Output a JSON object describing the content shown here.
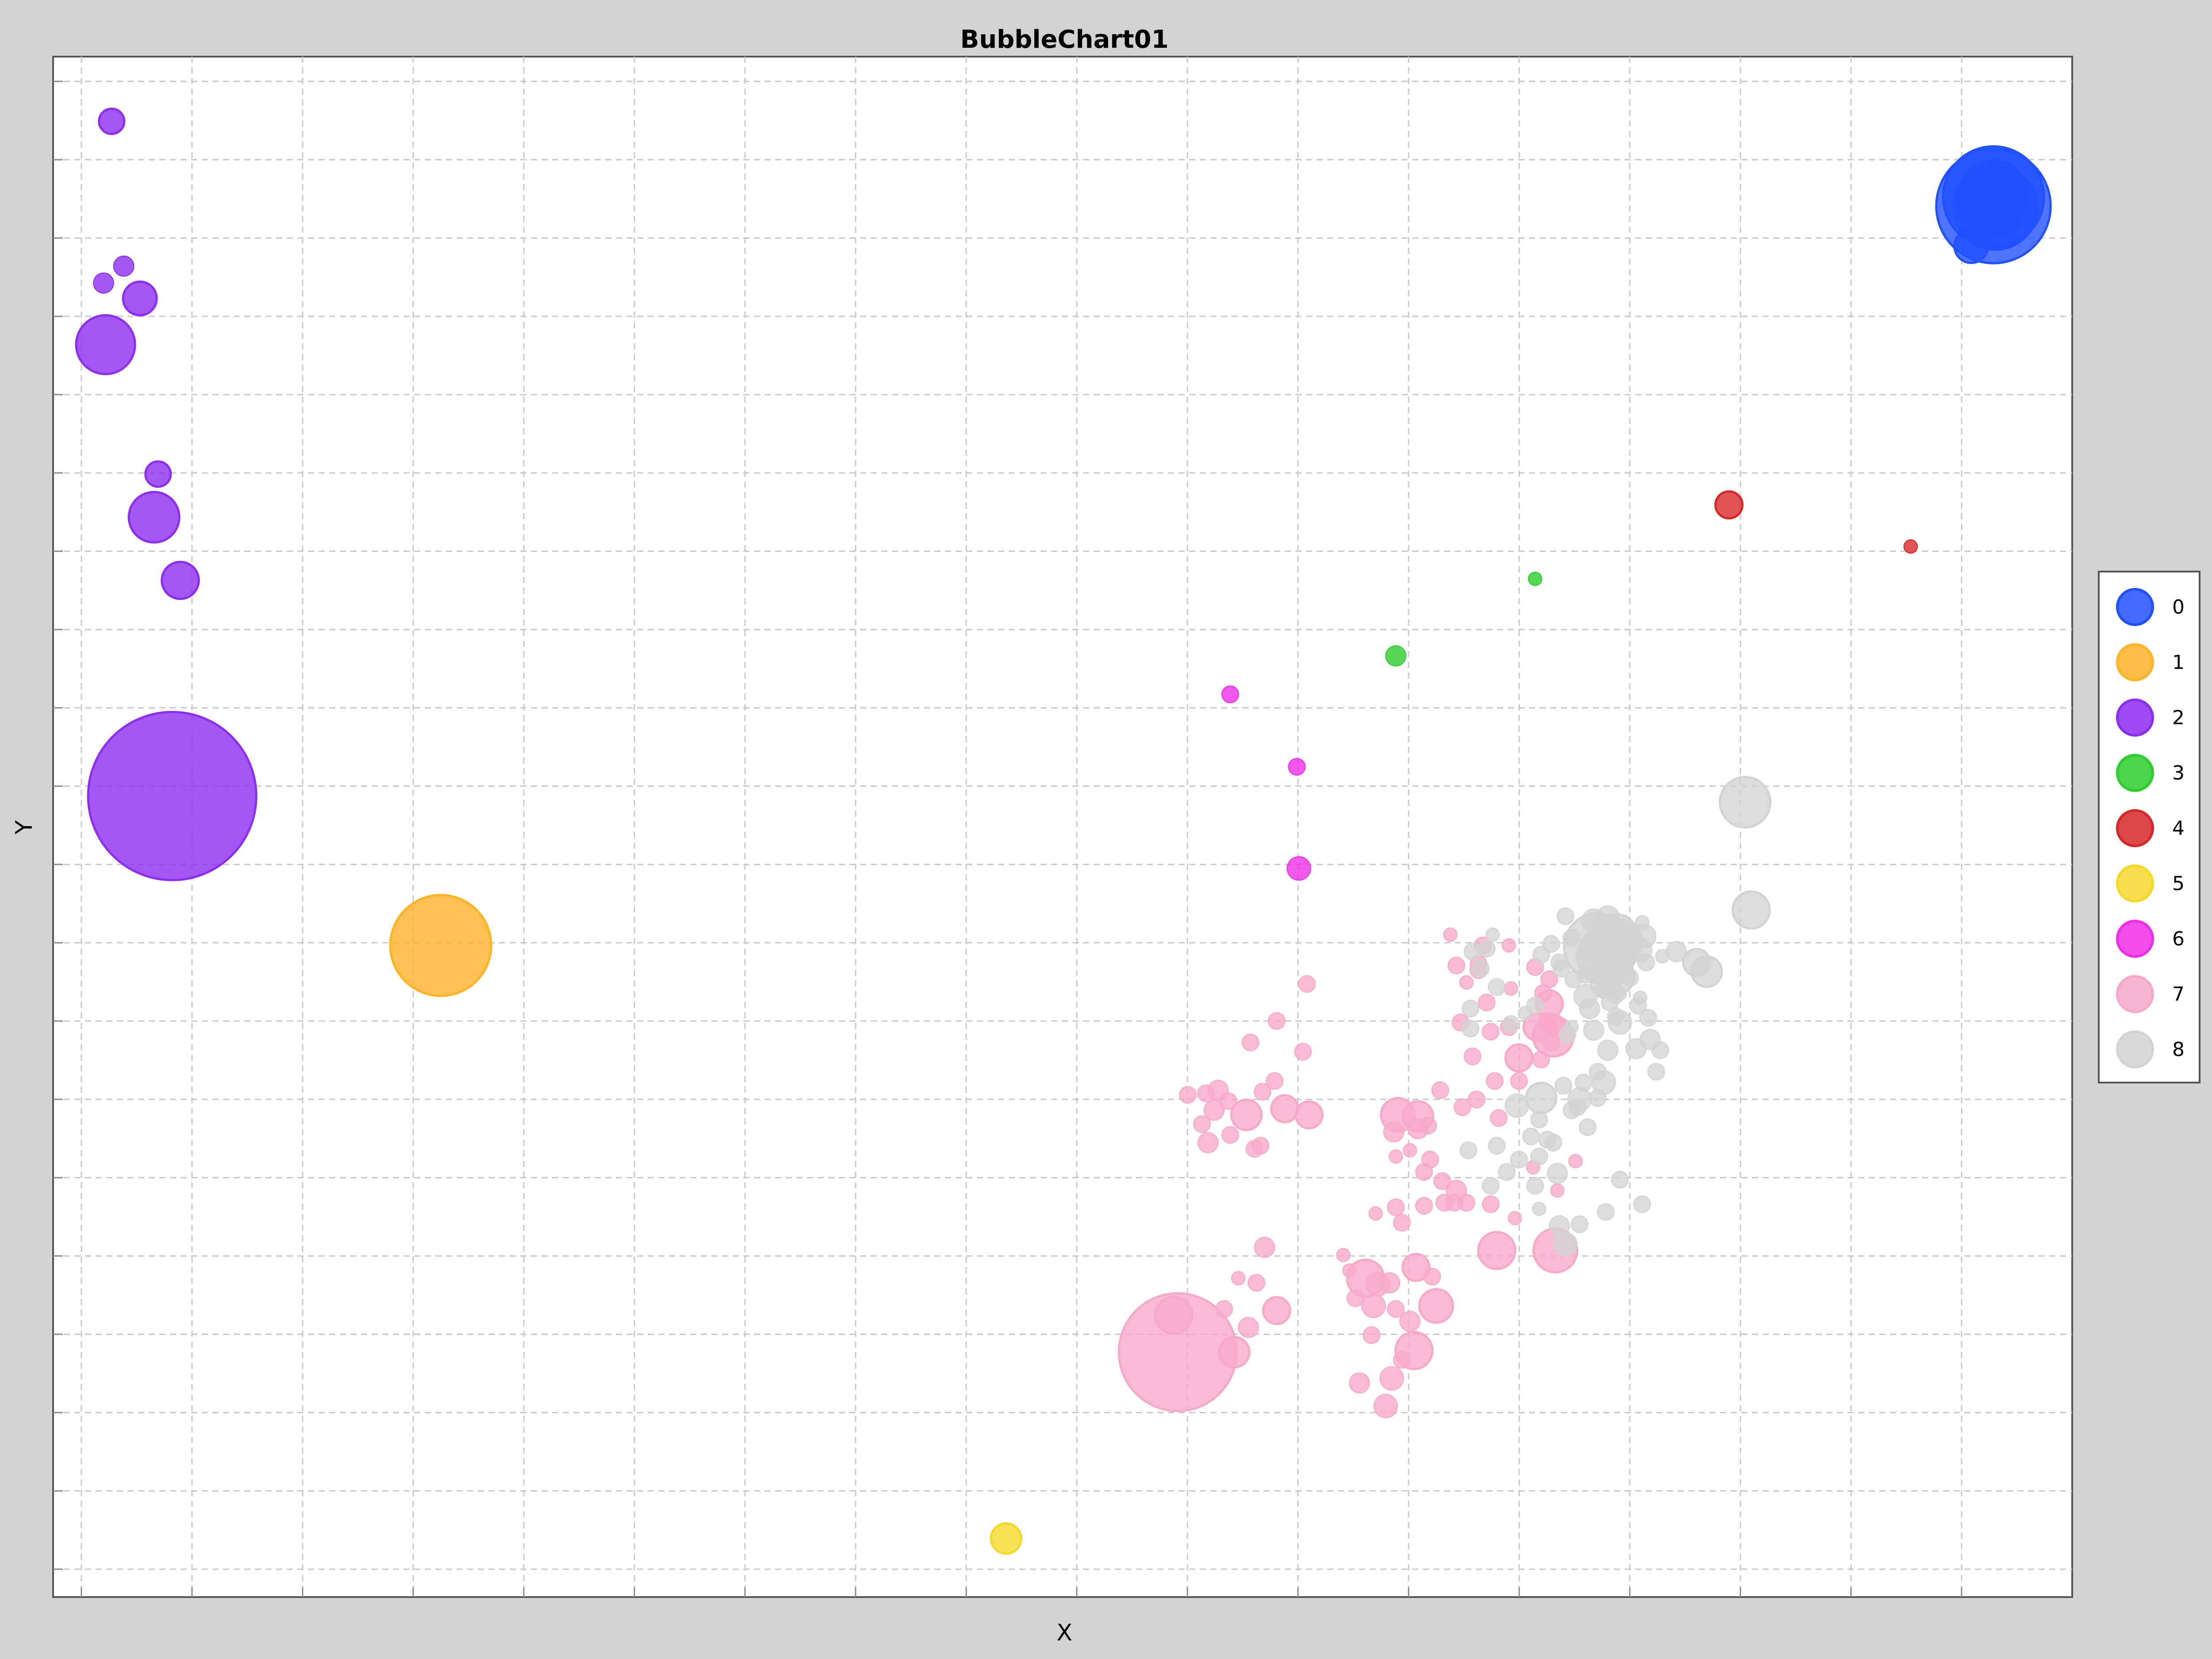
{
  "chart_data": {
    "type": "scatter",
    "title": "BubbleChart01",
    "xlabel": "X",
    "ylabel": "Y",
    "grid": true,
    "legend_position": "right",
    "tick_labels_shown": false,
    "xlim": [
      0,
      100
    ],
    "ylim": [
      0,
      100
    ],
    "series": [
      {
        "name": "0",
        "color": "#2150ff",
        "points": [
          [
            96.1,
            90.9,
            60
          ],
          [
            95.5,
            88.9,
            20
          ],
          [
            96.2,
            90.2,
            50
          ],
          [
            96.1,
            90.3,
            68
          ],
          [
            95.0,
            87.7,
            20
          ],
          [
            96.1,
            91.1,
            40
          ],
          [
            96.0,
            90.4,
            40
          ]
        ]
      },
      {
        "name": "1",
        "color": "#ffb327",
        "points": [
          [
            19.2,
            42.3,
            60
          ]
        ]
      },
      {
        "name": "2",
        "color": "#8c2df0",
        "points": [
          [
            2.9,
            95.8,
            15
          ],
          [
            3.5,
            86.4,
            12
          ],
          [
            2.5,
            85.3,
            12
          ],
          [
            4.3,
            84.3,
            20
          ],
          [
            2.6,
            81.3,
            35
          ],
          [
            5.2,
            72.9,
            15
          ],
          [
            5.0,
            70.1,
            30
          ],
          [
            6.3,
            66.0,
            22
          ],
          [
            5.9,
            52.0,
            100
          ]
        ]
      },
      {
        "name": "3",
        "color": "#2ecc2e",
        "points": [
          [
            66.5,
            61.1,
            12
          ],
          [
            73.4,
            66.1,
            8
          ]
        ]
      },
      {
        "name": "4",
        "color": "#d62828",
        "points": [
          [
            83.0,
            70.9,
            16
          ],
          [
            92.0,
            68.2,
            8
          ]
        ]
      },
      {
        "name": "5",
        "color": "#f5d92a",
        "points": [
          [
            47.2,
            3.8,
            18
          ]
        ]
      },
      {
        "name": "6",
        "color": "#ee2ee6",
        "points": [
          [
            58.3,
            58.6,
            10
          ],
          [
            61.6,
            53.9,
            10
          ],
          [
            61.7,
            47.3,
            14
          ]
        ]
      },
      {
        "name": "7",
        "color": "#f7aac8",
        "points": [
          [
            55.7,
            15.9,
            70
          ],
          [
            55.5,
            18.3,
            22
          ],
          [
            58.5,
            15.9,
            18
          ],
          [
            59.2,
            17.5,
            12
          ],
          [
            60.6,
            18.6,
            16
          ],
          [
            58.0,
            18.7,
            10
          ],
          [
            59.6,
            20.4,
            10
          ],
          [
            58.7,
            20.7,
            8
          ],
          [
            60.0,
            22.7,
            12
          ],
          [
            65.0,
            20.7,
            22
          ],
          [
            65.6,
            20.3,
            14
          ],
          [
            66.2,
            20.4,
            12
          ],
          [
            67.5,
            21.4,
            16
          ],
          [
            68.3,
            20.8,
            10
          ],
          [
            64.5,
            19.4,
            10
          ],
          [
            65.4,
            18.9,
            14
          ],
          [
            66.5,
            18.7,
            10
          ],
          [
            67.2,
            17.9,
            12
          ],
          [
            68.5,
            18.9,
            20
          ],
          [
            67.4,
            16.0,
            22
          ],
          [
            66.3,
            14.2,
            14
          ],
          [
            64.7,
            13.9,
            12
          ],
          [
            65.3,
            17.0,
            10
          ],
          [
            66.8,
            15.4,
            10
          ],
          [
            66.0,
            12.4,
            14
          ],
          [
            71.5,
            22.5,
            22
          ],
          [
            70.0,
            25.6,
            10
          ],
          [
            68.9,
            25.6,
            10
          ],
          [
            69.4,
            25.6,
            10
          ],
          [
            67.9,
            25.4,
            10
          ],
          [
            66.5,
            25.3,
            10
          ],
          [
            65.5,
            24.9,
            8
          ],
          [
            63.9,
            22.2,
            8
          ],
          [
            64.2,
            21.2,
            8
          ],
          [
            66.8,
            24.3,
            10
          ],
          [
            56.9,
            30.7,
            10
          ],
          [
            57.5,
            31.6,
            12
          ],
          [
            57.1,
            32.7,
            10
          ],
          [
            56.2,
            32.6,
            10
          ],
          [
            57.7,
            32.9,
            12
          ],
          [
            58.2,
            32.2,
            10
          ],
          [
            59.1,
            31.3,
            18
          ],
          [
            59.9,
            32.8,
            10
          ],
          [
            60.5,
            33.5,
            10
          ],
          [
            61.0,
            31.7,
            16
          ],
          [
            62.2,
            31.3,
            16
          ],
          [
            59.8,
            29.3,
            10
          ],
          [
            57.2,
            29.5,
            12
          ],
          [
            58.3,
            30.0,
            10
          ],
          [
            59.5,
            29.1,
            10
          ],
          [
            61.9,
            35.4,
            10
          ],
          [
            59.3,
            36.0,
            10
          ],
          [
            60.6,
            37.4,
            10
          ],
          [
            62.1,
            39.8,
            10
          ],
          [
            66.6,
            31.3,
            20
          ],
          [
            67.6,
            31.2,
            18
          ],
          [
            66.4,
            30.2,
            12
          ],
          [
            67.6,
            30.4,
            12
          ],
          [
            68.1,
            30.6,
            10
          ],
          [
            68.2,
            28.4,
            10
          ],
          [
            66.5,
            28.6,
            8
          ],
          [
            67.9,
            27.6,
            10
          ],
          [
            69.5,
            26.4,
            12
          ],
          [
            68.8,
            27.0,
            10
          ],
          [
            67.2,
            29.0,
            8
          ],
          [
            68.7,
            32.9,
            10
          ],
          [
            69.8,
            31.8,
            10
          ],
          [
            70.5,
            32.3,
            10
          ],
          [
            70.3,
            35.1,
            10
          ],
          [
            71.4,
            33.5,
            10
          ],
          [
            71.6,
            31.1,
            10
          ],
          [
            72.6,
            35.0,
            16
          ],
          [
            71.2,
            36.7,
            10
          ],
          [
            72.6,
            33.5,
            10
          ],
          [
            73.7,
            34.9,
            10
          ],
          [
            74.2,
            36.8,
            8
          ],
          [
            69.7,
            37.3,
            10
          ],
          [
            71.0,
            38.6,
            10
          ],
          [
            72.1,
            37.0,
            10
          ],
          [
            72.2,
            39.5,
            8
          ],
          [
            70.0,
            39.9,
            8
          ],
          [
            72.1,
            42.3,
            8
          ],
          [
            73.5,
            37.0,
            16
          ],
          [
            74.3,
            37.1,
            14
          ],
          [
            74.1,
            38.5,
            16
          ],
          [
            74.2,
            36.0,
            10
          ],
          [
            74.1,
            40.1,
            10
          ],
          [
            73.8,
            39.2,
            10
          ],
          [
            73.4,
            40.9,
            10
          ],
          [
            70.6,
            40.7,
            10
          ],
          [
            69.2,
            43.0,
            8
          ],
          [
            69.5,
            41.0,
            10
          ],
          [
            70.6,
            41.1,
            10
          ],
          [
            70.8,
            42.3,
            10
          ],
          [
            74.3,
            36.4,
            24
          ],
          [
            74.0,
            37.4,
            10
          ],
          [
            71.2,
            25.5,
            10
          ],
          [
            72.4,
            24.6,
            8
          ],
          [
            73.3,
            27.9,
            8
          ],
          [
            74.5,
            26.4,
            8
          ],
          [
            75.4,
            28.3,
            8
          ],
          [
            74.4,
            22.5,
            26
          ]
        ]
      },
      {
        "name": "8",
        "color": "#d3d3d3",
        "points": [
          [
            83.8,
            51.6,
            30
          ],
          [
            84.1,
            44.6,
            22
          ],
          [
            76.3,
            43.9,
            14
          ],
          [
            77.0,
            44.1,
            14
          ],
          [
            76.5,
            42.6,
            14
          ],
          [
            76.5,
            42.2,
            40
          ],
          [
            76.9,
            41.6,
            34
          ],
          [
            77.3,
            42.3,
            32
          ],
          [
            77.5,
            43.1,
            22
          ],
          [
            78.1,
            43.0,
            14
          ],
          [
            78.6,
            42.0,
            14
          ],
          [
            78.8,
            42.9,
            14
          ],
          [
            76.9,
            39.9,
            18
          ],
          [
            77.4,
            40.3,
            22
          ],
          [
            76.8,
            39.4,
            10
          ],
          [
            77.4,
            39.1,
            10
          ],
          [
            75.9,
            39.0,
            14
          ],
          [
            77.1,
            38.6,
            10
          ],
          [
            77.4,
            37.7,
            10
          ],
          [
            77.6,
            37.3,
            14
          ],
          [
            78.6,
            38.9,
            8
          ],
          [
            78.5,
            38.4,
            10
          ],
          [
            79.0,
            37.6,
            10
          ],
          [
            80.4,
            41.9,
            12
          ],
          [
            81.4,
            41.2,
            16
          ],
          [
            81.9,
            40.6,
            18
          ],
          [
            79.1,
            36.2,
            12
          ],
          [
            78.4,
            35.6,
            12
          ],
          [
            79.4,
            34.1,
            10
          ],
          [
            79.6,
            35.5,
            10
          ],
          [
            75.0,
            36.5,
            10
          ],
          [
            76.3,
            36.8,
            12
          ],
          [
            77.0,
            35.5,
            12
          ],
          [
            75.8,
            33.4,
            10
          ],
          [
            76.5,
            34.1,
            10
          ],
          [
            76.8,
            33.4,
            14
          ],
          [
            74.8,
            33.2,
            10
          ],
          [
            75.6,
            32.3,
            14
          ],
          [
            73.7,
            32.4,
            18
          ],
          [
            72.5,
            31.9,
            14
          ],
          [
            73.2,
            29.9,
            10
          ],
          [
            71.5,
            29.3,
            10
          ],
          [
            72.6,
            28.4,
            10
          ],
          [
            73.6,
            28.6,
            10
          ],
          [
            74.3,
            29.5,
            10
          ],
          [
            74.0,
            29.7,
            10
          ],
          [
            73.6,
            31.0,
            10
          ],
          [
            75.2,
            31.6,
            10
          ],
          [
            75.5,
            31.8,
            10
          ],
          [
            76.5,
            32.4,
            10
          ],
          [
            76.0,
            30.5,
            10
          ],
          [
            74.5,
            27.5,
            12
          ],
          [
            73.4,
            26.7,
            10
          ],
          [
            71.2,
            26.7,
            10
          ],
          [
            72.0,
            27.6,
            10
          ],
          [
            70.1,
            29.0,
            10
          ],
          [
            74.6,
            24.1,
            12
          ],
          [
            74.9,
            22.9,
            14
          ],
          [
            75.6,
            24.2,
            10
          ],
          [
            76.9,
            25.0,
            10
          ],
          [
            77.6,
            27.1,
            10
          ],
          [
            78.7,
            25.5,
            10
          ],
          [
            73.6,
            25.2,
            8
          ],
          [
            72.2,
            37.2,
            10
          ],
          [
            71.5,
            39.6,
            10
          ],
          [
            70.3,
            41.9,
            10
          ],
          [
            71.0,
            42.1,
            10
          ],
          [
            71.3,
            43.0,
            8
          ],
          [
            70.7,
            40.8,
            10
          ],
          [
            70.2,
            38.2,
            10
          ],
          [
            70.2,
            36.9,
            10
          ],
          [
            74.6,
            41.2,
            10
          ],
          [
            74.7,
            40.8,
            10
          ],
          [
            75.3,
            40.1,
            10
          ],
          [
            75.9,
            40.4,
            10
          ],
          [
            76.0,
            41.7,
            10
          ],
          [
            75.2,
            42.8,
            10
          ],
          [
            74.2,
            42.4,
            10
          ],
          [
            73.7,
            41.7,
            10
          ],
          [
            73.4,
            38.4,
            10
          ],
          [
            72.9,
            37.9,
            8
          ],
          [
            75.2,
            37.0,
            8
          ],
          [
            78.9,
            41.2,
            10
          ],
          [
            78.1,
            40.2,
            10
          ],
          [
            77.6,
            39.2,
            8
          ],
          [
            77.7,
            41.2,
            10
          ],
          [
            78.2,
            42.3,
            8
          ],
          [
            78.7,
            43.8,
            8
          ],
          [
            79.7,
            41.6,
            8
          ],
          [
            76.1,
            38.2,
            12
          ],
          [
            74.9,
            44.2,
            10
          ]
        ]
      }
    ]
  }
}
